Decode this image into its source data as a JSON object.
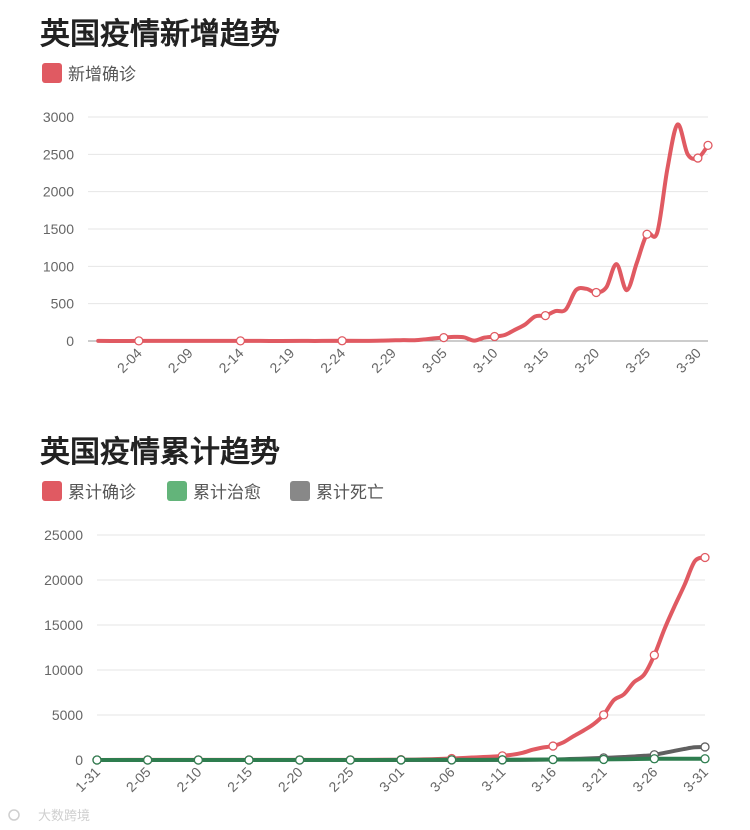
{
  "chart_data": [
    {
      "type": "line",
      "title": "英国疫情新增趋势",
      "legend": [
        {
          "name": "新增确诊",
          "color": "#e05a62"
        }
      ],
      "ylim": [
        0,
        3000
      ],
      "yticks": [
        "0",
        "500",
        "1000",
        "1500",
        "2000",
        "2500",
        "3000"
      ],
      "xticks": [
        "2-04",
        "2-09",
        "2-14",
        "2-19",
        "2-24",
        "2-29",
        "3-05",
        "3-10",
        "3-15",
        "3-20",
        "3-25",
        "3-30"
      ],
      "series": [
        {
          "name": "新增确诊",
          "color": "#e05a62",
          "x": [
            "1-31",
            "2-02",
            "2-04",
            "2-06",
            "2-08",
            "2-10",
            "2-12",
            "2-14",
            "2-16",
            "2-18",
            "2-20",
            "2-22",
            "2-24",
            "2-26",
            "2-28",
            "3-01",
            "3-02",
            "3-03",
            "3-04",
            "3-05",
            "3-06",
            "3-07",
            "3-08",
            "3-09",
            "3-10",
            "3-11",
            "3-12",
            "3-13",
            "3-14",
            "3-15",
            "3-16",
            "3-17",
            "3-18",
            "3-19",
            "3-20",
            "3-21",
            "3-22",
            "3-23",
            "3-24",
            "3-25",
            "3-26",
            "3-27",
            "3-28",
            "3-29",
            "3-30",
            "3-31"
          ],
          "values": [
            2,
            0,
            2,
            1,
            1,
            2,
            1,
            2,
            1,
            0,
            1,
            1,
            3,
            2,
            5,
            12,
            10,
            20,
            35,
            45,
            55,
            50,
            5,
            45,
            60,
            80,
            150,
            220,
            330,
            340,
            400,
            420,
            680,
            700,
            650,
            720,
            1030,
            680,
            1050,
            1430,
            1450,
            2300,
            2900,
            2500,
            2450,
            2620
          ]
        }
      ]
    },
    {
      "type": "line",
      "title": "英国疫情累计趋势",
      "legend": [
        {
          "name": "累计确诊",
          "color": "#e05a62"
        },
        {
          "name": "累计治愈",
          "color": "#63b47a"
        },
        {
          "name": "累计死亡",
          "color": "#888888"
        }
      ],
      "ylim": [
        0,
        25000
      ],
      "yticks": [
        "0",
        "5000",
        "10000",
        "15000",
        "20000",
        "25000"
      ],
      "xticks": [
        "1-31",
        "2-05",
        "2-10",
        "2-15",
        "2-20",
        "2-25",
        "3-01",
        "3-06",
        "3-11",
        "3-16",
        "3-21",
        "3-26",
        "3-31"
      ],
      "series": [
        {
          "name": "累计确诊",
          "color": "#e05a62",
          "x": [
            "1-31",
            "2-05",
            "2-10",
            "2-15",
            "2-20",
            "2-25",
            "3-01",
            "3-04",
            "3-06",
            "3-08",
            "3-10",
            "3-11",
            "3-12",
            "3-13",
            "3-14",
            "3-15",
            "3-16",
            "3-17",
            "3-18",
            "3-19",
            "3-20",
            "3-21",
            "3-22",
            "3-23",
            "3-24",
            "3-25",
            "3-26",
            "3-27",
            "3-28",
            "3-29",
            "3-30",
            "3-31"
          ],
          "values": [
            2,
            8,
            8,
            9,
            9,
            13,
            36,
            85,
            163,
            273,
            373,
            456,
            590,
            800,
            1140,
            1390,
            1550,
            1950,
            2630,
            3270,
            3980,
            5018,
            6650,
            7300,
            8650,
            9500,
            11650,
            14550,
            17100,
            19500,
            22100,
            22500
          ]
        },
        {
          "name": "累计死亡",
          "color": "#606060",
          "x": [
            "1-31",
            "2-05",
            "2-10",
            "2-15",
            "2-20",
            "2-25",
            "3-01",
            "3-06",
            "3-11",
            "3-16",
            "3-21",
            "3-23",
            "3-25",
            "3-26",
            "3-28",
            "3-29",
            "3-30",
            "3-31"
          ],
          "values": [
            0,
            0,
            0,
            0,
            0,
            0,
            0,
            2,
            6,
            55,
            233,
            335,
            465,
            580,
            1020,
            1230,
            1410,
            1450
          ]
        },
        {
          "name": "累计治愈",
          "color": "#2e7d4f",
          "x": [
            "1-31",
            "2-05",
            "2-10",
            "2-15",
            "2-20",
            "2-25",
            "3-01",
            "3-06",
            "3-11",
            "3-16",
            "3-21",
            "3-26",
            "3-31"
          ],
          "values": [
            0,
            0,
            0,
            0,
            0,
            0,
            8,
            18,
            19,
            52,
            65,
            135,
            135
          ]
        }
      ]
    }
  ],
  "watermark": "大数跨境"
}
